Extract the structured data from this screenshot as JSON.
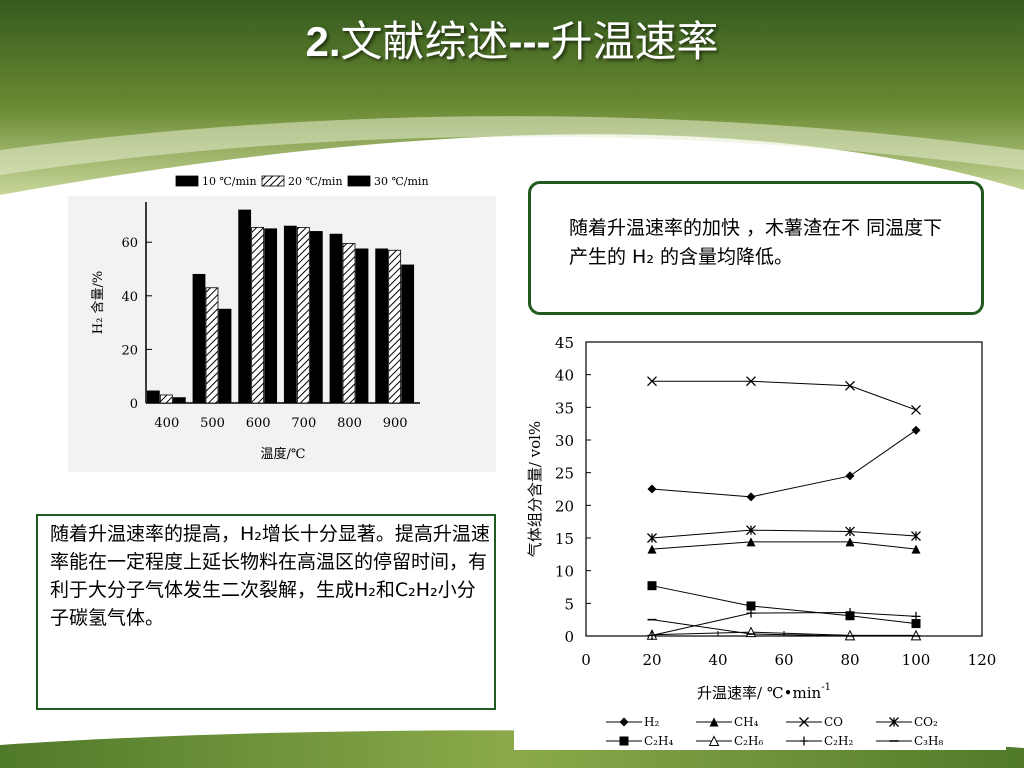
{
  "slide": {
    "title_num": "2.",
    "title_text": "文献综述",
    "title_dash": "---",
    "title_tail": "升温速率"
  },
  "notes": {
    "top": "随着升温速率的加快 ，木薯渣在不 同温度下产生的 H₂ 的含量均降低。",
    "bottom": "随着升温速率的提高，H₂增长十分显著。提高升温速率能在一定程度上延长物料在高温区的停留时间，有利于大分子气体发生二次裂解，生成H₂和C₂H₂小分子碳氢气体。"
  },
  "chart_data": [
    {
      "type": "bar",
      "xlabel": "温度/℃",
      "ylabel": "H₂ 含量/%",
      "ylim": [
        0,
        75
      ],
      "yticks": [
        "0",
        "20",
        "40",
        "60"
      ],
      "categories": [
        "400",
        "500",
        "600",
        "700",
        "800",
        "900"
      ],
      "legend_position": "top",
      "series": [
        {
          "name": "10 ℃/min",
          "values": [
            4.5,
            48,
            72,
            66,
            63,
            57.5
          ],
          "fill": "solid",
          "color": "#000000"
        },
        {
          "name": "20 ℃/min",
          "values": [
            3,
            43,
            65.5,
            65.5,
            59.5,
            57
          ],
          "fill": "hatch",
          "color": "#000000"
        },
        {
          "name": "30 ℃/min",
          "values": [
            2,
            35,
            65,
            64,
            57.5,
            51.5
          ],
          "fill": "solid",
          "color": "#000000"
        }
      ]
    },
    {
      "type": "line",
      "xlabel": "升温速率/ ℃•min",
      "xlabel_sup": "-1",
      "ylabel": "气体组分含量/ vol%",
      "xlim": [
        0,
        120
      ],
      "ylim": [
        0,
        45
      ],
      "xticks": [
        "0",
        "20",
        "40",
        "60",
        "80",
        "100",
        "120"
      ],
      "yticks": [
        "0",
        "5",
        "10",
        "15",
        "20",
        "25",
        "30",
        "35",
        "40",
        "45"
      ],
      "x": [
        20,
        50,
        80,
        100
      ],
      "legend_position": "bottom",
      "series": [
        {
          "name": "H₂",
          "marker": "diamond",
          "values": [
            22.5,
            21.3,
            24.5,
            31.5
          ]
        },
        {
          "name": "CH₄",
          "marker": "triangle",
          "values": [
            13.3,
            14.4,
            14.4,
            13.3
          ]
        },
        {
          "name": "CO",
          "marker": "x",
          "values": [
            39,
            39,
            38.3,
            34.6
          ]
        },
        {
          "name": "CO₂",
          "marker": "asterisk",
          "values": [
            15,
            16.2,
            16,
            15.3
          ]
        },
        {
          "name": "C₂H₄",
          "marker": "square",
          "values": [
            7.7,
            4.6,
            3.1,
            1.9
          ]
        },
        {
          "name": "C₂H₆",
          "marker": "open-triangle",
          "values": [
            0.2,
            0.6,
            0.1,
            0.1
          ]
        },
        {
          "name": "C₂H₂",
          "marker": "plus",
          "values": [
            0.1,
            3.5,
            3.6,
            3.0
          ]
        },
        {
          "name": "C₃H₈",
          "marker": "dash",
          "values": [
            2.5,
            0.3,
            0,
            0
          ]
        }
      ]
    }
  ]
}
